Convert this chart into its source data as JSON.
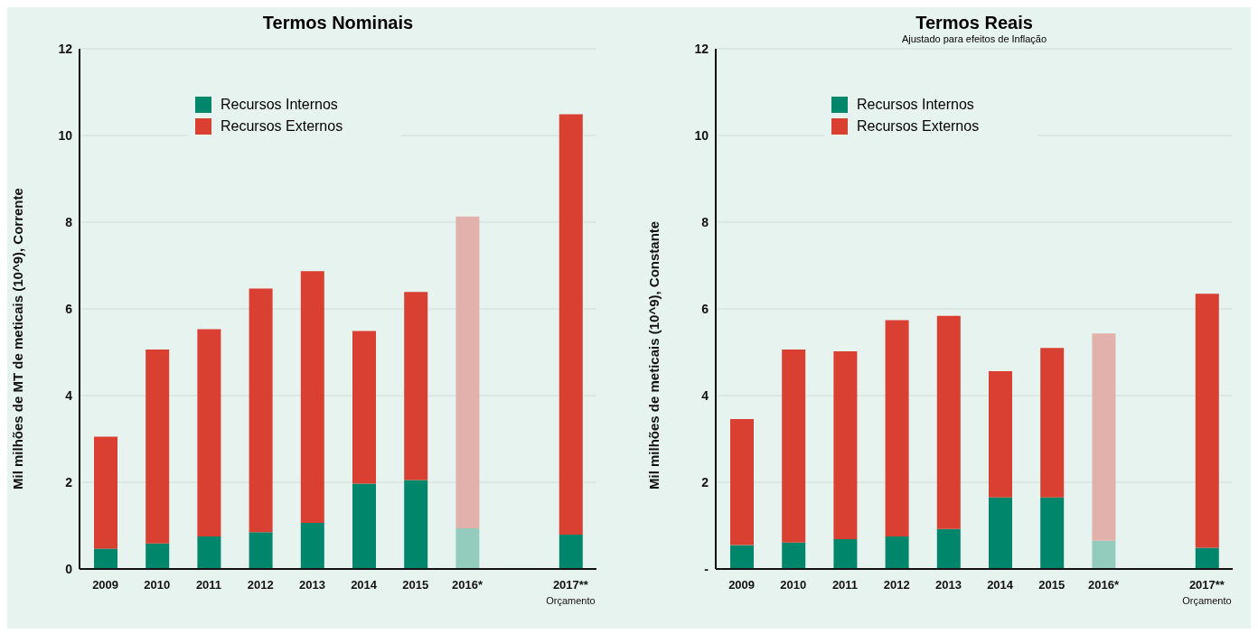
{
  "chart_data": [
    {
      "type": "bar",
      "title": "Termos  Nominais",
      "ylabel": "Mil milhões de MT de meticais (10^9), Corrente",
      "categories": [
        "2009",
        "2010",
        "2011",
        "2012",
        "2013",
        "2014",
        "2015",
        "2016*",
        null,
        "2017**\nOrçamento"
      ],
      "stacked": true,
      "ylim": [
        0,
        12
      ],
      "yticks": [
        0,
        2,
        4,
        6,
        8,
        10,
        12
      ],
      "grid": "y",
      "legend": "top",
      "series": [
        {
          "name": "Recursos Internos",
          "color": "#00866a",
          "colors": [
            "#00866a",
            "#00866a",
            "#00866a",
            "#00866a",
            "#00866a",
            "#00866a",
            "#00866a",
            "#93cbbd",
            "#00866a",
            "#00866a"
          ],
          "values": [
            0.47,
            0.59,
            0.75,
            0.85,
            1.06,
            1.97,
            2.05,
            0.94,
            null,
            0.79
          ]
        },
        {
          "name": "Recursos Externos",
          "color": "#d94032",
          "colors": [
            "#d94032",
            "#d94032",
            "#d94032",
            "#d94032",
            "#d94032",
            "#d94032",
            "#d94032",
            "#e2b1ac",
            "#d94032",
            "#d94032"
          ],
          "values": [
            2.58,
            4.47,
            4.78,
            5.62,
            5.81,
            3.52,
            4.34,
            7.19,
            null,
            9.7
          ]
        }
      ]
    },
    {
      "type": "bar",
      "title": "Termos  Reais",
      "subtitle": "Ajustado para efeitos de Inflação",
      "ylabel": "Mil milhões de meticais (10^9), Constante",
      "categories": [
        "2009",
        "2010",
        "2011",
        "2012",
        "2013",
        "2014",
        "2015",
        "2016*",
        null,
        "2017**\nOrçamento"
      ],
      "stacked": true,
      "ylim": [
        0,
        12
      ],
      "yticks": [
        {
          "value": 0,
          "label": "-"
        },
        2,
        4,
        6,
        8,
        10,
        12
      ],
      "grid": "y",
      "legend": "top",
      "series": [
        {
          "name": "Recursos Internos",
          "color": "#00866a",
          "colors": [
            "#00866a",
            "#00866a",
            "#00866a",
            "#00866a",
            "#00866a",
            "#00866a",
            "#00866a",
            "#93cbbd",
            "#00866a",
            "#00866a"
          ],
          "values": [
            0.55,
            0.61,
            0.69,
            0.75,
            0.92,
            1.65,
            1.65,
            0.65,
            null,
            0.49
          ]
        },
        {
          "name": "Recursos Externos",
          "color": "#d94032",
          "colors": [
            "#d94032",
            "#d94032",
            "#d94032",
            "#d94032",
            "#d94032",
            "#d94032",
            "#d94032",
            "#e2b1ac",
            "#d94032",
            "#d94032"
          ],
          "values": [
            2.91,
            4.45,
            4.33,
            4.99,
            4.92,
            2.91,
            3.45,
            4.78,
            null,
            5.86
          ]
        }
      ]
    }
  ]
}
